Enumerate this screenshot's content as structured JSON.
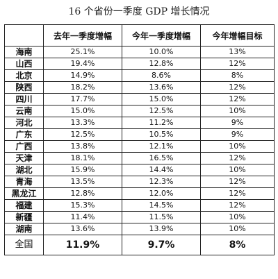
{
  "title": "16 个省份一季度 GDP 增长情况",
  "headers": [
    "",
    "去年一季度增幅",
    "今年一季度增幅",
    "今年增幅目标"
  ],
  "rows": [
    {
      "province": "海南",
      "last_year": "25.1%",
      "this_year": "10.0%",
      "target": "13%"
    },
    {
      "province": "山西",
      "last_year": "19.4%",
      "this_year": "12.8%",
      "target": "12%"
    },
    {
      "province": "北京",
      "last_year": "14.9%",
      "this_year": "8.6%",
      "target": "8%"
    },
    {
      "province": "陕西",
      "last_year": "18.2%",
      "this_year": "13.6%",
      "target": "12%"
    },
    {
      "province": "四川",
      "last_year": "17.7%",
      "this_year": "15.0%",
      "target": "12%"
    },
    {
      "province": "云南",
      "last_year": "15.0%",
      "this_year": "12.5%",
      "target": "10%"
    },
    {
      "province": "河北",
      "last_year": "13.3%",
      "this_year": "11.2%",
      "target": "9%"
    },
    {
      "province": "广东",
      "last_year": "12.5%",
      "this_year": "10.5%",
      "target": "9%"
    },
    {
      "province": "广西",
      "last_year": "13.8%",
      "this_year": "12.1%",
      "target": "10%"
    },
    {
      "province": "天津",
      "last_year": "18.1%",
      "this_year": "16.5%",
      "target": "12%"
    },
    {
      "province": "湖北",
      "last_year": "15.9%",
      "this_year": "14.4%",
      "target": "10%"
    },
    {
      "province": "青海",
      "last_year": "13.5%",
      "this_year": "12.3%",
      "target": "12%"
    },
    {
      "province": "黑龙江",
      "last_year": "12.8%",
      "this_year": "12.0%",
      "target": "12%"
    },
    {
      "province": "福建",
      "last_year": "15.3%",
      "this_year": "14.5%",
      "target": "12%"
    },
    {
      "province": "新疆",
      "last_year": "11.4%",
      "this_year": "11.5%",
      "target": "10%"
    },
    {
      "province": "湖南",
      "last_year": "13.6%",
      "this_year": "13.9%",
      "target": "10%"
    }
  ],
  "total": {
    "province": "全国",
    "last_year": "11.9%",
    "this_year": "9.7%",
    "target": "8%"
  }
}
